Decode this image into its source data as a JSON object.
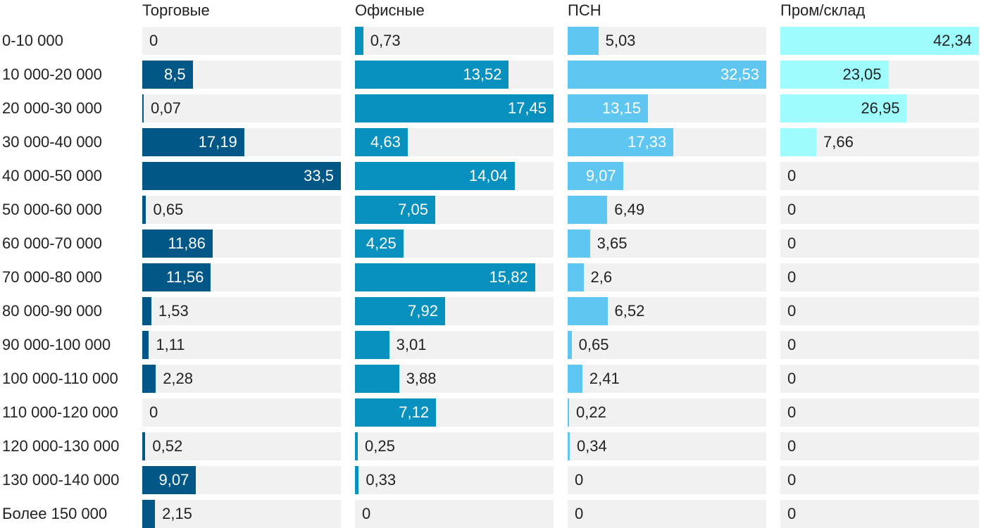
{
  "chart_data": {
    "type": "bar",
    "orientation": "horizontal",
    "layout": "small-multiples",
    "categories": [
      "0-10 000",
      "10 000-20 000",
      "20 000-30 000",
      "30 000-40 000",
      "40 000-50 000",
      "50 000-60 000",
      "60 000-70 000",
      "70 000-80 000",
      "80 000-90 000",
      "90 000-100 000",
      "100 000-110 000",
      "110 000-120 000",
      "120 000-130 000",
      "130 000-140 000",
      "Более 150 000"
    ],
    "series": [
      {
        "name": "Торговые",
        "color": "#015887",
        "values": [
          0,
          8.5,
          0.07,
          17.19,
          33.5,
          0.65,
          11.86,
          11.56,
          1.53,
          1.11,
          2.28,
          0,
          0.52,
          9.07,
          2.15
        ],
        "labels": [
          "0",
          "8,5",
          "0,07",
          "17,19",
          "33,5",
          "0,65",
          "11,86",
          "11,56",
          "1,53",
          "1,11",
          "2,28",
          "0",
          "0,52",
          "9,07",
          "2,15"
        ],
        "max": 33.5
      },
      {
        "name": "Офисные",
        "color": "#0891be",
        "values": [
          0.73,
          13.52,
          17.45,
          4.63,
          14.04,
          7.05,
          4.25,
          15.82,
          7.92,
          3.01,
          3.88,
          7.12,
          0.25,
          0.33,
          0
        ],
        "labels": [
          "0,73",
          "13,52",
          "17,45",
          "4,63",
          "14,04",
          "7,05",
          "4,25",
          "15,82",
          "7,92",
          "3,01",
          "3,88",
          "7,12",
          "0,25",
          "0,33",
          "0"
        ],
        "max": 17.45
      },
      {
        "name": "ПСН",
        "color": "#5fc6f2",
        "values": [
          5.03,
          32.53,
          13.15,
          17.33,
          9.07,
          6.49,
          3.65,
          2.6,
          6.52,
          0.65,
          2.41,
          0.22,
          0.34,
          0,
          0
        ],
        "labels": [
          "5,03",
          "32,53",
          "13,15",
          "17,33",
          "9,07",
          "6,49",
          "3,65",
          "2,6",
          "6,52",
          "0,65",
          "2,41",
          "0,22",
          "0,34",
          "0",
          "0"
        ],
        "max": 32.53
      },
      {
        "name": "Пром/склад",
        "color": "#9efcfd",
        "values": [
          42.34,
          23.05,
          26.95,
          7.66,
          0,
          0,
          0,
          0,
          0,
          0,
          0,
          0,
          0,
          0,
          0
        ],
        "labels": [
          "42,34",
          "23,05",
          "26,95",
          "7,66",
          "0",
          "0",
          "0",
          "0",
          "0",
          "0",
          "0",
          "0",
          "0",
          "0",
          "0"
        ],
        "max": 42.34
      }
    ]
  }
}
